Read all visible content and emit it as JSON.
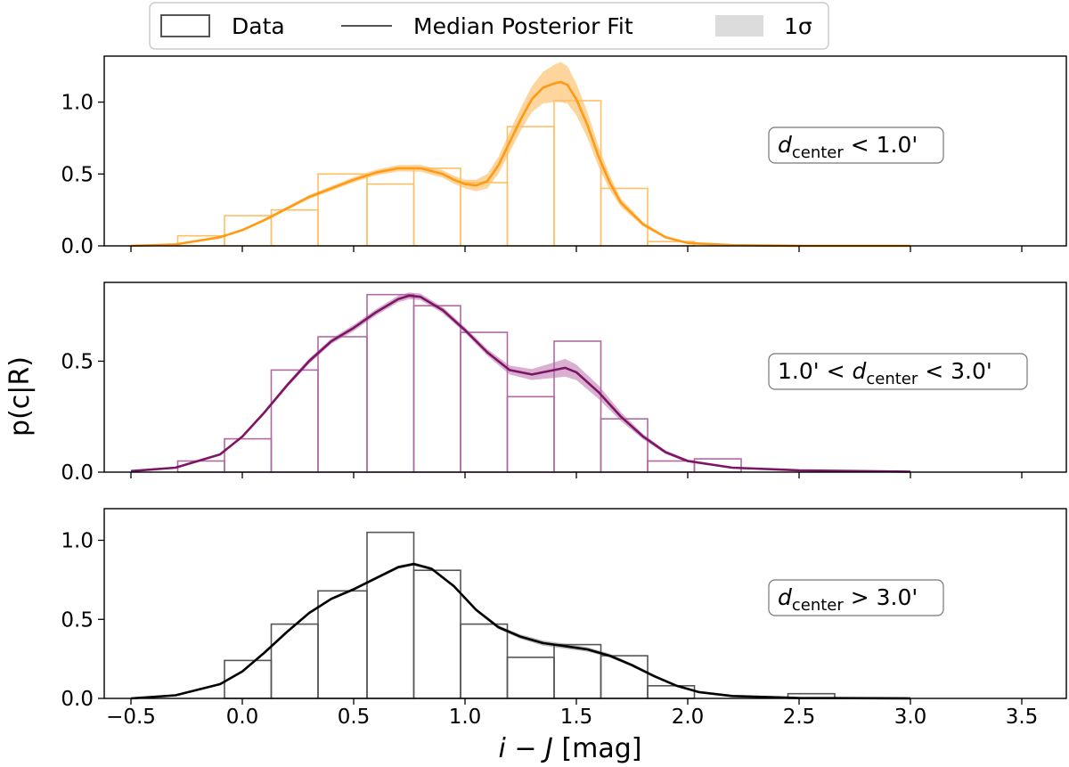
{
  "chart_data": {
    "type": "histogram+line",
    "ylabel": "p(c|R)",
    "xlabel": "i − J [mag]",
    "xlim": [
      -0.62,
      3.7
    ],
    "x_ticks": [
      -0.5,
      0.0,
      0.5,
      1.0,
      1.5,
      2.0,
      2.5,
      3.0,
      3.5
    ],
    "x_tick_labels": [
      "−0.5",
      "0.0",
      "0.5",
      "1.0",
      "1.5",
      "2.0",
      "2.5",
      "3.0",
      "3.5"
    ],
    "legend": {
      "placement": "top-center",
      "entries": [
        {
          "label": "Data",
          "kind": "step"
        },
        {
          "label": "Median Posterior Fit",
          "kind": "line"
        },
        {
          "label": "1σ",
          "kind": "band"
        }
      ]
    },
    "panels": [
      {
        "name": "inner",
        "annotation": "d_center < 1.0'",
        "ylim": [
          0,
          1.32
        ],
        "y_ticks": [
          0.0,
          0.5,
          1.0
        ],
        "y_tick_labels": [
          "0.0",
          "0.5",
          "1.0"
        ],
        "color": "#ff9a12",
        "band_color": "#fdd59d",
        "hist_color": "#ffbf66",
        "bin_edges": [
          -0.29,
          -0.08,
          0.13,
          0.34,
          0.56,
          0.77,
          0.98,
          1.19,
          1.4,
          1.61,
          1.82,
          2.03
        ],
        "hist_values": [
          0.07,
          0.21,
          0.25,
          0.5,
          0.43,
          0.54,
          0.44,
          0.83,
          1.01,
          0.4,
          0.03
        ],
        "fit_x": [
          -0.5,
          -0.3,
          -0.1,
          0.0,
          0.1,
          0.2,
          0.3,
          0.4,
          0.5,
          0.6,
          0.7,
          0.8,
          0.9,
          0.95,
          1.0,
          1.05,
          1.1,
          1.15,
          1.2,
          1.25,
          1.3,
          1.35,
          1.4,
          1.43,
          1.46,
          1.5,
          1.55,
          1.6,
          1.65,
          1.7,
          1.8,
          1.9,
          2.0,
          2.2,
          2.5,
          3.0
        ],
        "fit_y": [
          0.0,
          0.01,
          0.06,
          0.11,
          0.18,
          0.26,
          0.34,
          0.4,
          0.46,
          0.51,
          0.54,
          0.54,
          0.5,
          0.46,
          0.43,
          0.42,
          0.45,
          0.56,
          0.72,
          0.88,
          1.02,
          1.1,
          1.13,
          1.14,
          1.12,
          1.02,
          0.84,
          0.62,
          0.44,
          0.3,
          0.15,
          0.06,
          0.02,
          0.005,
          0.0,
          0.0
        ],
        "band_width": [
          0.0,
          0.003,
          0.006,
          0.008,
          0.01,
          0.012,
          0.014,
          0.016,
          0.018,
          0.02,
          0.022,
          0.024,
          0.026,
          0.028,
          0.03,
          0.04,
          0.05,
          0.06,
          0.07,
          0.08,
          0.09,
          0.11,
          0.13,
          0.14,
          0.13,
          0.11,
          0.09,
          0.07,
          0.05,
          0.03,
          0.015,
          0.008,
          0.004,
          0.002,
          0.0,
          0.0
        ]
      },
      {
        "name": "middle",
        "annotation": "1.0' < d_center < 3.0'",
        "ylim": [
          0,
          0.855
        ],
        "y_ticks": [
          0.0,
          0.5
        ],
        "y_tick_labels": [
          "0.0",
          "0.5"
        ],
        "color": "#7d1566",
        "band_color": "#d9b0cf",
        "hist_color": "#b06aa0",
        "bin_edges": [
          -0.29,
          -0.08,
          0.13,
          0.34,
          0.56,
          0.77,
          0.98,
          1.19,
          1.4,
          1.61,
          1.82,
          2.03,
          2.24
        ],
        "hist_values": [
          0.05,
          0.15,
          0.46,
          0.61,
          0.8,
          0.75,
          0.63,
          0.34,
          0.59,
          0.24,
          0.05,
          0.06
        ],
        "fit_x": [
          -0.5,
          -0.3,
          -0.1,
          0.0,
          0.1,
          0.2,
          0.3,
          0.4,
          0.5,
          0.6,
          0.7,
          0.75,
          0.8,
          0.9,
          1.0,
          1.1,
          1.2,
          1.3,
          1.4,
          1.45,
          1.5,
          1.6,
          1.7,
          1.8,
          1.9,
          2.0,
          2.2,
          2.5,
          3.0
        ],
        "fit_y": [
          0.005,
          0.02,
          0.08,
          0.16,
          0.27,
          0.39,
          0.5,
          0.59,
          0.65,
          0.72,
          0.78,
          0.795,
          0.79,
          0.73,
          0.64,
          0.54,
          0.46,
          0.44,
          0.46,
          0.47,
          0.45,
          0.36,
          0.25,
          0.16,
          0.09,
          0.05,
          0.02,
          0.008,
          0.002
        ],
        "band_width": [
          0.0,
          0.002,
          0.004,
          0.006,
          0.008,
          0.01,
          0.012,
          0.012,
          0.014,
          0.014,
          0.015,
          0.015,
          0.015,
          0.014,
          0.013,
          0.015,
          0.02,
          0.025,
          0.035,
          0.04,
          0.035,
          0.03,
          0.02,
          0.012,
          0.008,
          0.006,
          0.004,
          0.002,
          0.0
        ]
      },
      {
        "name": "outer",
        "annotation": "d_center > 3.0'",
        "ylim": [
          0,
          1.2
        ],
        "y_ticks": [
          0.0,
          0.5,
          1.0
        ],
        "y_tick_labels": [
          "0.0",
          "0.5",
          "1.0"
        ],
        "color": "#000000",
        "band_color": "#bdbdbd",
        "hist_color": "#555555",
        "bin_edges": [
          -0.08,
          0.13,
          0.34,
          0.56,
          0.77,
          0.98,
          1.19,
          1.4,
          1.61,
          1.82,
          2.03,
          2.24,
          2.45,
          2.66
        ],
        "hist_values": [
          0.24,
          0.47,
          0.68,
          1.05,
          0.81,
          0.47,
          0.26,
          0.34,
          0.27,
          0.08,
          0.0,
          0.0,
          0.03
        ],
        "fit_x": [
          -0.5,
          -0.3,
          -0.1,
          0.0,
          0.1,
          0.2,
          0.3,
          0.4,
          0.5,
          0.6,
          0.7,
          0.77,
          0.85,
          0.95,
          1.05,
          1.15,
          1.25,
          1.35,
          1.45,
          1.55,
          1.65,
          1.75,
          1.85,
          1.95,
          2.05,
          2.2,
          2.5,
          3.0
        ],
        "fit_y": [
          0.0,
          0.02,
          0.09,
          0.17,
          0.29,
          0.42,
          0.54,
          0.63,
          0.69,
          0.76,
          0.83,
          0.85,
          0.82,
          0.71,
          0.56,
          0.45,
          0.39,
          0.35,
          0.33,
          0.31,
          0.27,
          0.21,
          0.14,
          0.08,
          0.04,
          0.015,
          0.003,
          0.0
        ],
        "band_width": [
          0.0,
          0.002,
          0.004,
          0.005,
          0.006,
          0.007,
          0.008,
          0.008,
          0.009,
          0.009,
          0.01,
          0.01,
          0.01,
          0.01,
          0.01,
          0.012,
          0.014,
          0.016,
          0.016,
          0.014,
          0.012,
          0.01,
          0.008,
          0.006,
          0.004,
          0.002,
          0.0,
          0.0
        ]
      }
    ]
  }
}
